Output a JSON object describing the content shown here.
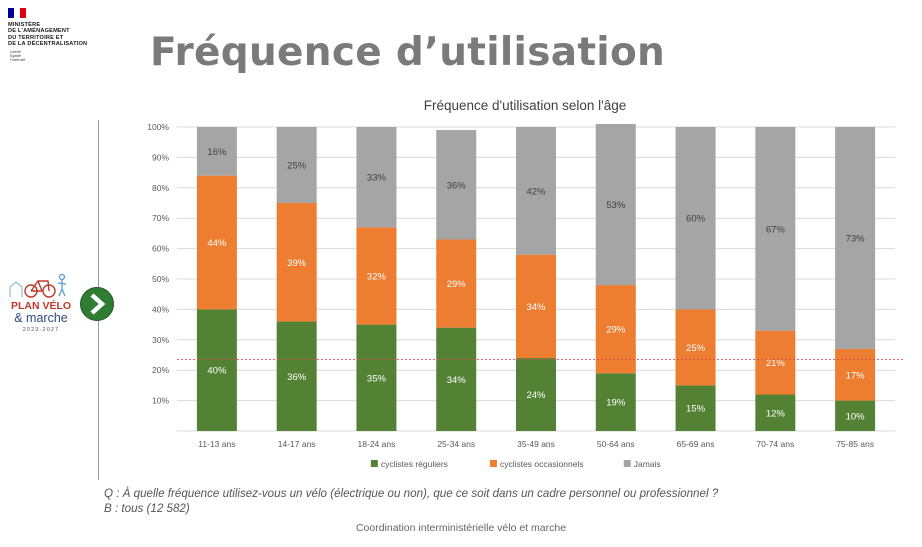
{
  "header": {
    "ministry_lines": [
      "MINISTÈRE",
      "DE L'AMÉNAGEMENT",
      "DU TERRITOIRE ET",
      "DE LA DÉCENTRALISATION"
    ],
    "motto_lines": [
      "Liberté",
      "Égalité",
      "Fraternité"
    ],
    "title": "Fréquence d’utilisation"
  },
  "plan_logo": {
    "line1": "PLAN VÉLO",
    "line2": "& marche",
    "line3": "2023-2027"
  },
  "colors": {
    "regular": "#548235",
    "occasional": "#ED7D31",
    "never": "#A5A5A5",
    "title_gray": "#7a7a7a",
    "arrow_green": "#2e7d32",
    "ref_line": "#d9534f"
  },
  "chart_data": {
    "type": "bar",
    "stacked": true,
    "percent": true,
    "title": "Fréquence d'utilisation selon l'âge",
    "categories": [
      "11-13 ans",
      "14-17 ans",
      "18-24 ans",
      "25-34 ans",
      "35-49 ans",
      "50-64 ans",
      "65-69 ans",
      "70-74 ans",
      "75-85 ans"
    ],
    "series": [
      {
        "name": "cyclistes réguliers",
        "color": "#548235",
        "values": [
          40,
          36,
          35,
          34,
          24,
          19,
          15,
          12,
          10
        ]
      },
      {
        "name": "cyclistes occasionnels",
        "color": "#ED7D31",
        "values": [
          44,
          39,
          32,
          29,
          34,
          29,
          25,
          21,
          17
        ]
      },
      {
        "name": "Jamais",
        "color": "#A5A5A5",
        "values": [
          16,
          25,
          33,
          36,
          42,
          53,
          60,
          67,
          73
        ]
      }
    ],
    "y_ticks": [
      "10%",
      "20%",
      "30%",
      "40%",
      "50%",
      "60%",
      "70%",
      "80%",
      "90%",
      "100%"
    ],
    "ylim": [
      0,
      100
    ],
    "reference_line": 23.5,
    "grid": true,
    "legend_position": "bottom"
  },
  "footer": {
    "question": "Q : À quelle fréquence utilisez-vous un vélo (électrique ou non), que ce soit dans un cadre personnel ou professionnel ?",
    "base": "B : tous (12 582)",
    "coordination": "Coordination interministérielle vélo et marche"
  }
}
